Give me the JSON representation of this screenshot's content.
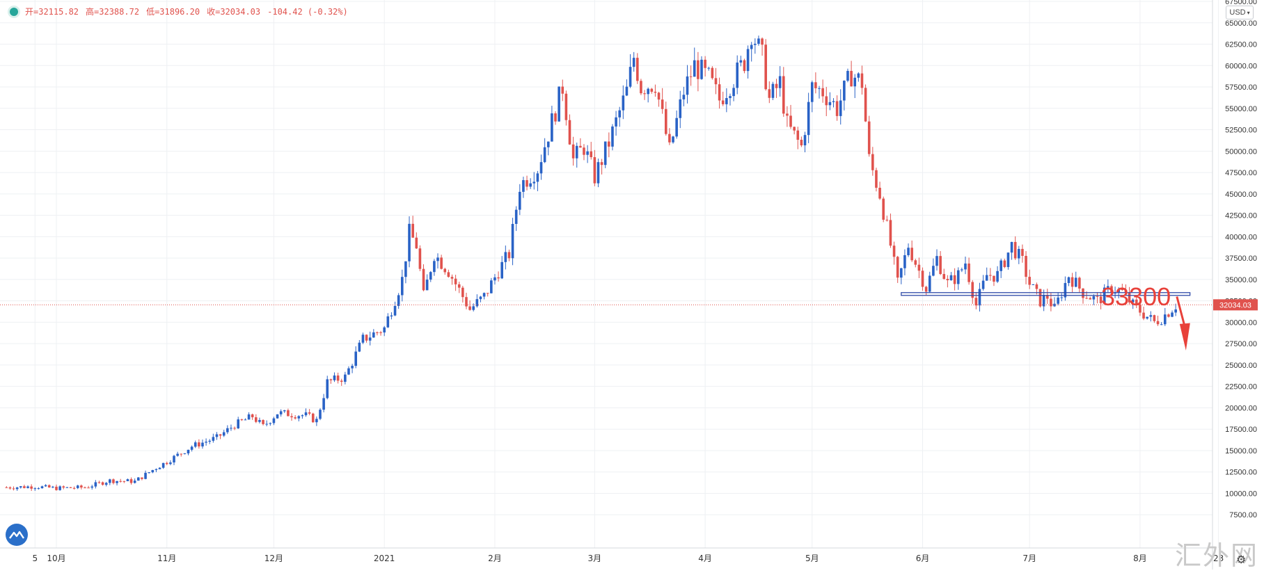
{
  "legend": {
    "open_label": "开=32115.82",
    "high_label": "高=32388.72",
    "low_label": "低=31896.20",
    "close_label": "收=32034.03",
    "change_label": "-104.42 (-0.32%)"
  },
  "currency_selector": "USD",
  "price_tag": "32034.03",
  "annotation": "33300",
  "watermark": "汇外网",
  "colors": {
    "up": "#2962c6",
    "down": "#e0524d",
    "grid": "#eef0f3",
    "annotation": "#e8413a",
    "level_line": "#2e4aa8"
  },
  "chart_data": {
    "type": "candlestick",
    "y_axis": {
      "min": 5000,
      "max": 67500,
      "ticks": [
        "7500.00",
        "10000.00",
        "12500.00",
        "15000.00",
        "17500.00",
        "20000.00",
        "22500.00",
        "25000.00",
        "27500.00",
        "30000.00",
        "32500.00",
        "35000.00",
        "37500.00",
        "40000.00",
        "42500.00",
        "45000.00",
        "47500.00",
        "50000.00",
        "52500.00",
        "55000.00",
        "57500.00",
        "60000.00",
        "62500.00",
        "65000.00",
        "67500.00"
      ]
    },
    "x_axis": {
      "ticks": [
        {
          "label": "5",
          "day": -6
        },
        {
          "label": "10月",
          "day": 0
        },
        {
          "label": "11月",
          "day": 31
        },
        {
          "label": "12月",
          "day": 61
        },
        {
          "label": "2021",
          "day": 92
        },
        {
          "label": "2月",
          "day": 123
        },
        {
          "label": "3月",
          "day": 151
        },
        {
          "label": "4月",
          "day": 182
        },
        {
          "label": "5月",
          "day": 212
        },
        {
          "label": "6月",
          "day": 243
        },
        {
          "label": "7月",
          "day": 273
        },
        {
          "label": "8月",
          "day": 304
        },
        {
          "label": "23",
          "day": 326
        }
      ],
      "first_day": -14,
      "last_day": 340
    },
    "last_price": 32034.03,
    "support_level": 33300,
    "path": [
      [
        -14,
        10700
      ],
      [
        -6,
        10800
      ],
      [
        0,
        10600
      ],
      [
        8,
        10700
      ],
      [
        15,
        11500
      ],
      [
        22,
        11400
      ],
      [
        28,
        13000
      ],
      [
        31,
        13700
      ],
      [
        38,
        15500
      ],
      [
        45,
        16500
      ],
      [
        50,
        18000
      ],
      [
        55,
        19000
      ],
      [
        58,
        17800
      ],
      [
        62,
        19400
      ],
      [
        70,
        19100
      ],
      [
        73,
        18500
      ],
      [
        76,
        23000
      ],
      [
        81,
        23600
      ],
      [
        86,
        28000
      ],
      [
        92,
        29300
      ],
      [
        97,
        35000
      ],
      [
        99,
        40500
      ],
      [
        101,
        39000
      ],
      [
        103,
        33000
      ],
      [
        106,
        38000
      ],
      [
        110,
        36000
      ],
      [
        116,
        31500
      ],
      [
        120,
        33000
      ],
      [
        124,
        36000
      ],
      [
        127,
        38000
      ],
      [
        130,
        46000
      ],
      [
        135,
        48000
      ],
      [
        142,
        57500
      ],
      [
        145,
        49000
      ],
      [
        148,
        50500
      ],
      [
        151,
        47000
      ],
      [
        155,
        51000
      ],
      [
        160,
        57000
      ],
      [
        162,
        61000
      ],
      [
        164,
        57500
      ],
      [
        168,
        58000
      ],
      [
        172,
        50000
      ],
      [
        176,
        57000
      ],
      [
        179,
        60000
      ],
      [
        183,
        58500
      ],
      [
        186,
        56000
      ],
      [
        190,
        58500
      ],
      [
        193,
        60500
      ],
      [
        195,
        64000
      ],
      [
        198,
        61000
      ],
      [
        200,
        56000
      ],
      [
        203,
        58000
      ],
      [
        205,
        53000
      ],
      [
        209,
        50500
      ],
      [
        212,
        57500
      ],
      [
        215,
        57000
      ],
      [
        219,
        55000
      ],
      [
        223,
        59000
      ],
      [
        226,
        58000
      ],
      [
        228,
        49000
      ],
      [
        231,
        45000
      ],
      [
        234,
        39000
      ],
      [
        236,
        34500
      ],
      [
        239,
        39000
      ],
      [
        242,
        36000
      ],
      [
        244,
        34000
      ],
      [
        247,
        37500
      ],
      [
        250,
        34500
      ],
      [
        253,
        35500
      ],
      [
        255,
        37000
      ],
      [
        258,
        32000
      ],
      [
        261,
        35500
      ],
      [
        264,
        35500
      ],
      [
        268,
        39000
      ],
      [
        271,
        37000
      ],
      [
        273,
        34500
      ],
      [
        276,
        32500
      ],
      [
        278,
        33000
      ],
      [
        280,
        31500
      ],
      [
        284,
        35500
      ],
      [
        288,
        33500
      ],
      [
        292,
        32500
      ],
      [
        296,
        34000
      ],
      [
        299,
        33500
      ],
      [
        302,
        32000
      ],
      [
        305,
        31000
      ],
      [
        308,
        30000
      ],
      [
        310,
        30500
      ],
      [
        314,
        32000
      ]
    ],
    "seed": 7
  }
}
